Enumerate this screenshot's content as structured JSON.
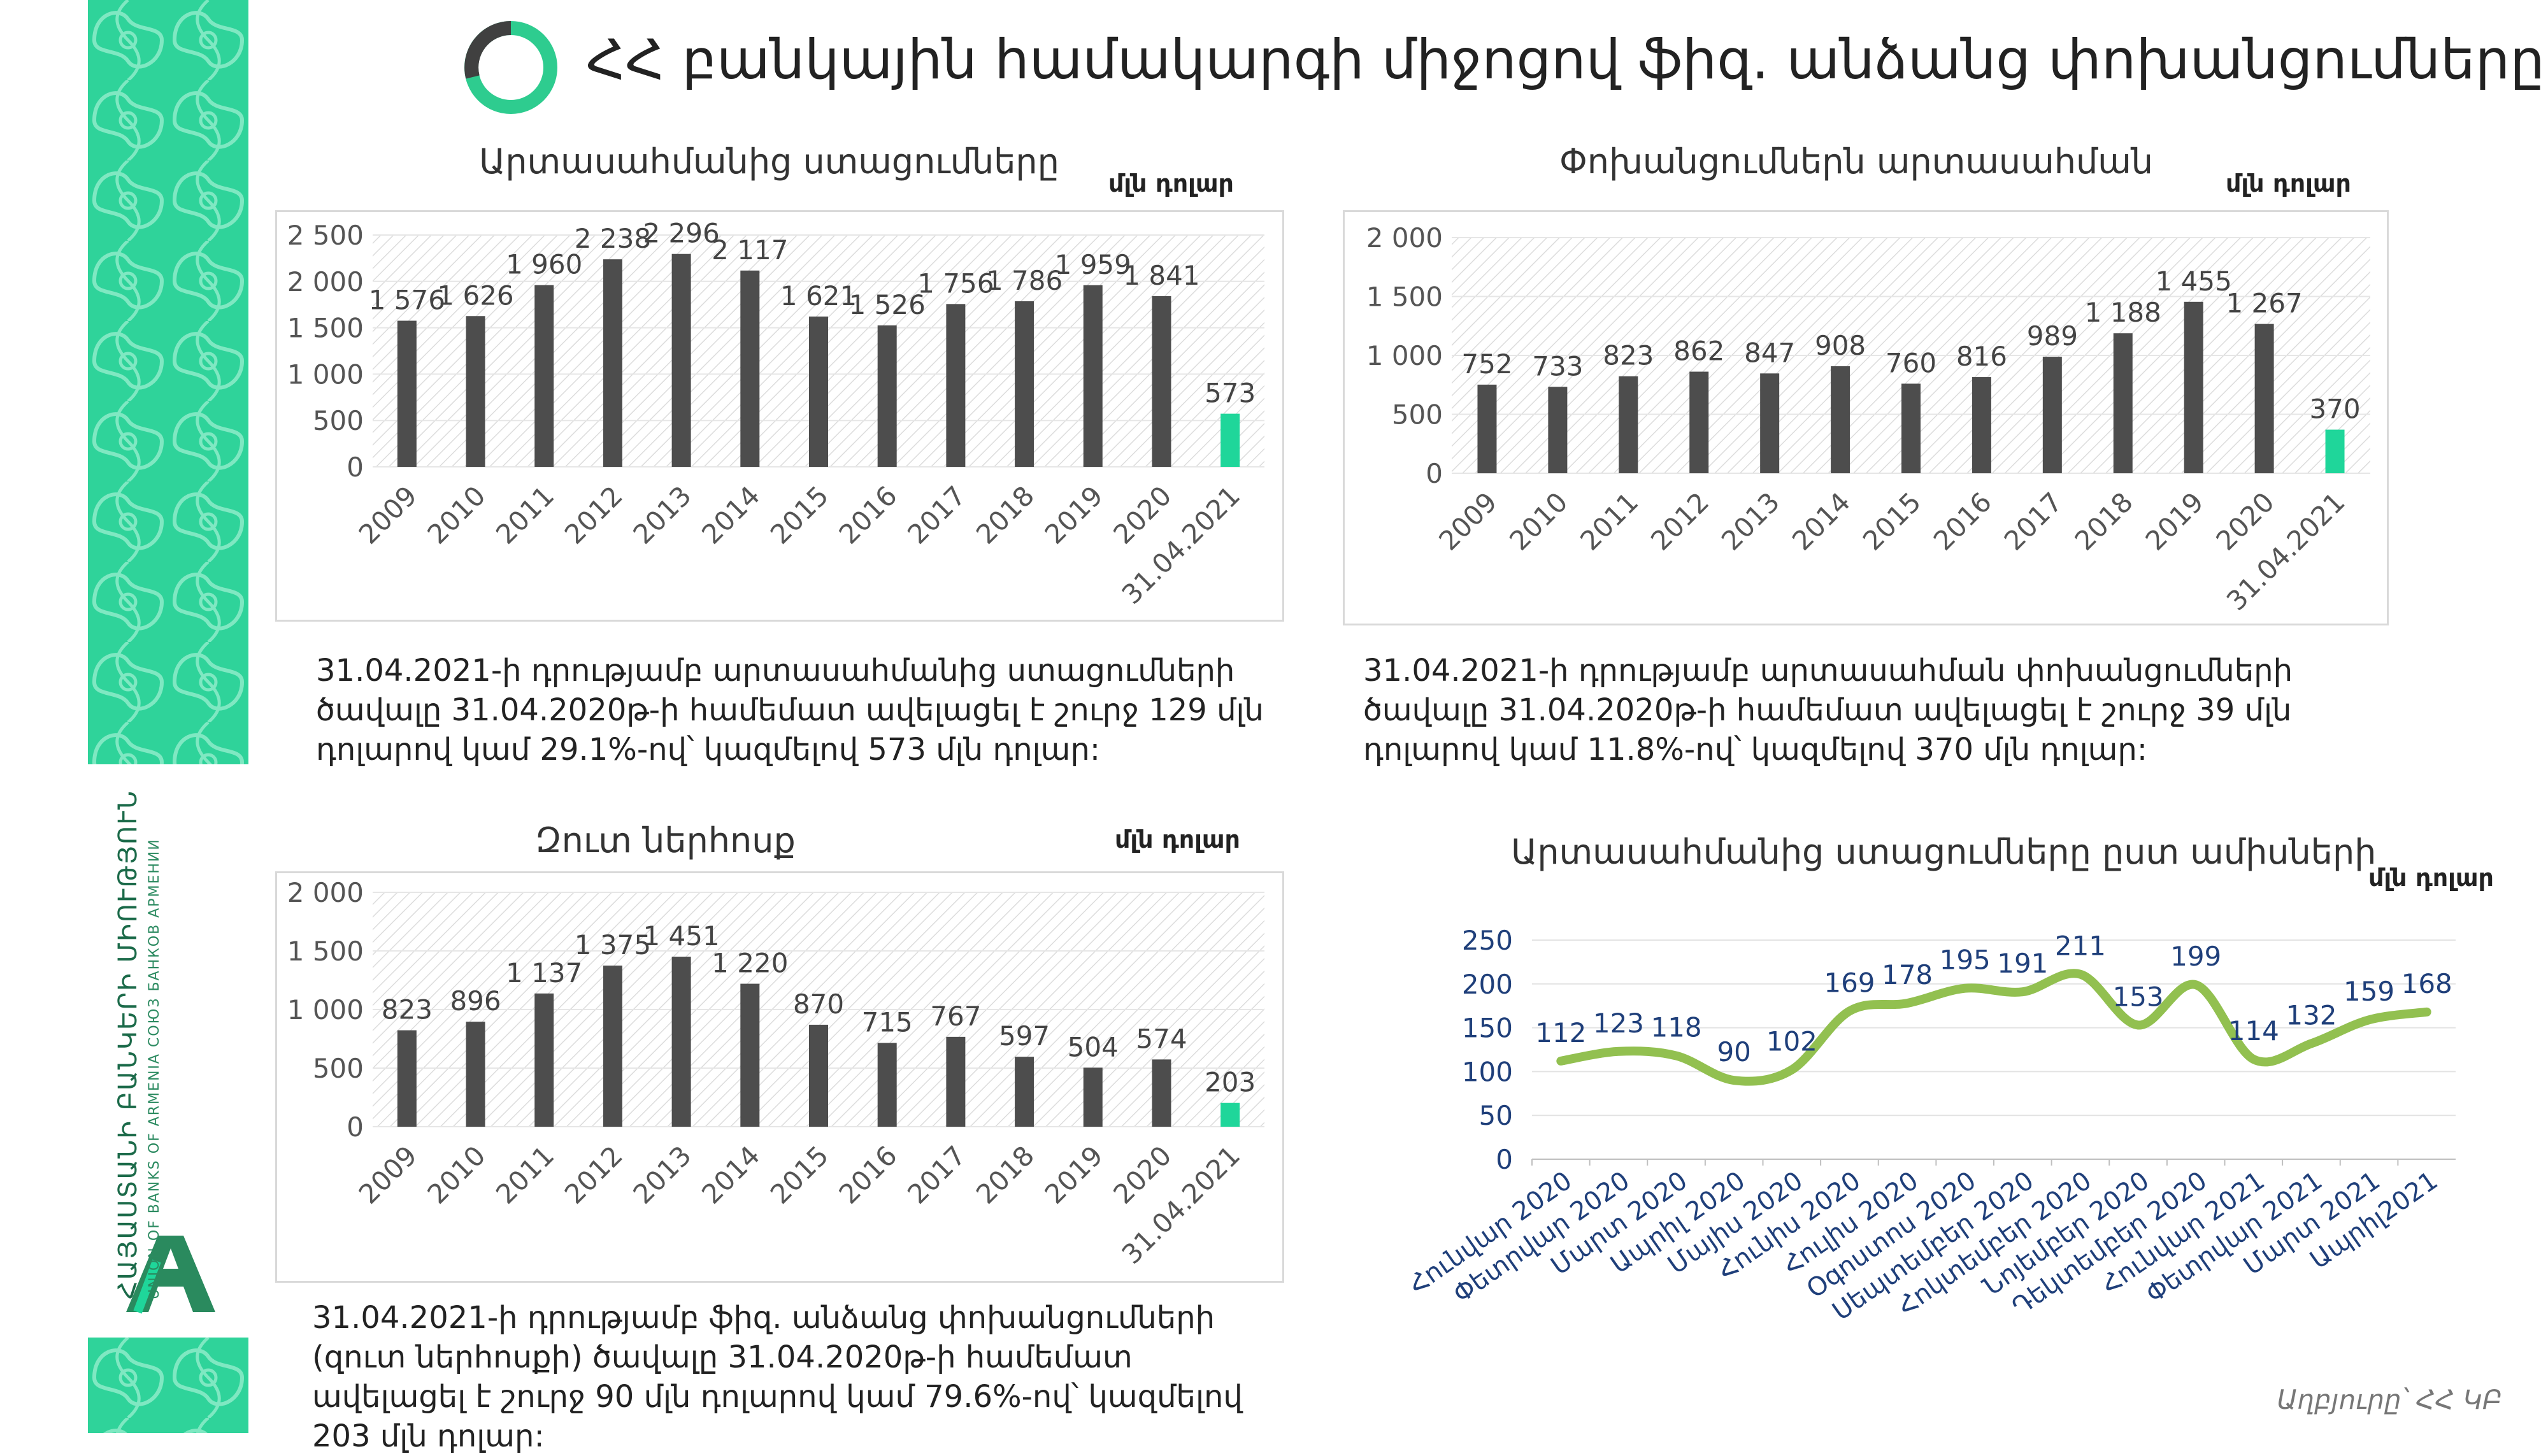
{
  "page": {
    "title": "ՀՀ բանկային համակարգի միջոցով ֆիզ. անձանց փոխանցումները",
    "source": "Աղբյուրը՝ ՀՀ ԿԲ"
  },
  "sidebar": {
    "org_line1": "ՀԱՅԱՍՏԱՆԻ ԲԱՆԿԵՐԻ ՄԻՈՒԹՅՈՒՆ",
    "org_line2": "UNION OF BANKS OF ARMENIA  СОЮЗ БАНКОВ АРМЕНИИ"
  },
  "colors": {
    "bar": "#4d4d4d",
    "highlight": "#1fd69a",
    "line": "#92c050",
    "label_blue": "#1f3f7a",
    "ring_dark": "#404040",
    "ring_green": "#2ecc8f"
  },
  "notes": {
    "inflow": "31.04.2021-ի դրությամբ արտասահմանից ստացումների ծավալը 31.04.2020թ-ի համեմատ ավելացել է շուրջ 129 մլն դոլարով կամ 29.1%-ով՝ կազմելով 573 մլն դոլար:",
    "outflow": "31.04.2021-ի դրությամբ արտասահման փոխանցումների ծավալը 31.04.2020թ-ի համեմատ ավելացել է շուրջ 39 մլն դոլարով կամ 11.8%-ով՝ կազմելով 370 մլն դոլար:",
    "net": "31.04.2021-ի դրությամբ ֆիզ. անձանց փոխանցումների (զուտ ներհոսքի) ծավալը 31.04.2020թ-ի համեմատ ավելացել է շուրջ 90 մլն դոլարով կամ  79.6%-ով՝ կազմելով 203 մլն դոլար:"
  },
  "chart_data": [
    {
      "id": "inflow",
      "type": "bar",
      "title": "Արտասահմանից ստացումները",
      "unit": "մլն դոլար",
      "categories": [
        "2009",
        "2010",
        "2011",
        "2012",
        "2013",
        "2014",
        "2015",
        "2016",
        "2017",
        "2018",
        "2019",
        "2020",
        "31.04.2021"
      ],
      "values": [
        1576,
        1626,
        1960,
        2238,
        2296,
        2117,
        1621,
        1526,
        1756,
        1786,
        1959,
        1841,
        573
      ],
      "value_labels": [
        "1 576",
        "1 626",
        "1 960",
        "2 238",
        "2 296",
        "2 117",
        "1 621",
        "1 526",
        "1 756",
        "1 786",
        "1 959",
        "1 841",
        "573"
      ],
      "ylim": [
        0,
        2500
      ],
      "yticks": [
        0,
        500,
        1000,
        1500,
        2000,
        2500
      ],
      "ytick_labels": [
        "0",
        "500",
        "1 000",
        "1 500",
        "2 000",
        "2 500"
      ],
      "highlight_last": true
    },
    {
      "id": "outflow",
      "type": "bar",
      "title": "Փոխանցումներն արտասահման",
      "unit": "մլն դոլար",
      "categories": [
        "2009",
        "2010",
        "2011",
        "2012",
        "2013",
        "2014",
        "2015",
        "2016",
        "2017",
        "2018",
        "2019",
        "2020",
        "31.04.2021"
      ],
      "values": [
        752,
        733,
        823,
        862,
        847,
        908,
        760,
        816,
        989,
        1188,
        1455,
        1267,
        370
      ],
      "value_labels": [
        "752",
        "733",
        "823",
        "862",
        "847",
        "908",
        "760",
        "816",
        "989",
        "1 188",
        "1 455",
        "1 267",
        "370"
      ],
      "ylim": [
        0,
        2000
      ],
      "yticks": [
        0,
        500,
        1000,
        1500,
        2000
      ],
      "ytick_labels": [
        "0",
        "500",
        "1 000",
        "1 500",
        "2 000"
      ],
      "highlight_last": true
    },
    {
      "id": "net",
      "type": "bar",
      "title": "Զուտ ներհոսք",
      "unit": "մլն դոլար",
      "categories": [
        "2009",
        "2010",
        "2011",
        "2012",
        "2013",
        "2014",
        "2015",
        "2016",
        "2017",
        "2018",
        "2019",
        "2020",
        "31.04.2021"
      ],
      "values": [
        823,
        896,
        1137,
        1375,
        1451,
        1220,
        870,
        715,
        767,
        597,
        504,
        574,
        203
      ],
      "value_labels": [
        "823",
        "896",
        "1 137",
        "1 375",
        "1 451",
        "1 220",
        "870",
        "715",
        "767",
        "597",
        "504",
        "574",
        "203"
      ],
      "ylim": [
        0,
        2000
      ],
      "yticks": [
        0,
        500,
        1000,
        1500,
        2000
      ],
      "ytick_labels": [
        "0",
        "500",
        "1 000",
        "1 500",
        "2 000"
      ],
      "highlight_last": true
    },
    {
      "id": "monthly",
      "type": "line",
      "title": "Արտասահմանից ստացումները ըստ ամիսների",
      "unit": "մլն դոլար",
      "categories": [
        "Հունվար 2020",
        "Փետրվար 2020",
        "Մարտ 2020",
        "Ապրիլ 2020",
        "Մայիս 2020",
        "Հունիս 2020",
        "Հուլիս 2020",
        "Օգոստոս 2020",
        "Սեպտեմբեր 2020",
        "Հոկտեմբեր 2020",
        "Նոյեմբեր 2020",
        "Դեկտեմբեր 2020",
        "Հունվար 2021",
        "Փետրվար 2021",
        "Մարտ 2021",
        "Ապրիլ2021"
      ],
      "values": [
        112,
        123,
        118,
        90,
        102,
        169,
        178,
        195,
        191,
        211,
        153,
        199,
        114,
        132,
        159,
        168
      ],
      "ylim": [
        0,
        250
      ],
      "yticks": [
        0,
        50,
        100,
        150,
        200,
        250
      ],
      "ytick_labels": [
        "0",
        "50",
        "100",
        "150",
        "200",
        "250"
      ]
    }
  ]
}
